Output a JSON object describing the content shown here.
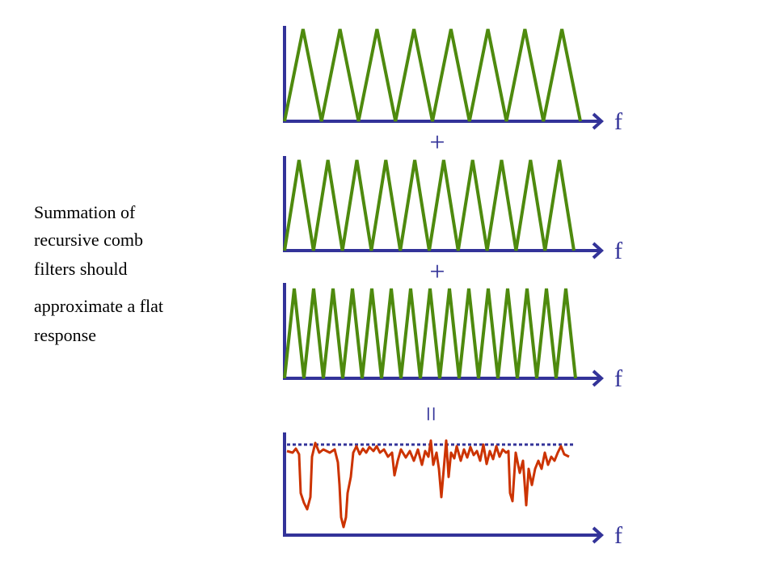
{
  "caption": {
    "lines": [
      "Summation of",
      "recursive comb",
      "filters should",
      "approximate a flat",
      "response"
    ]
  },
  "panels": [
    {
      "axis_label": "f"
    },
    {
      "axis_label": "f"
    },
    {
      "axis_label": "f"
    },
    {
      "axis_label": "f"
    }
  ],
  "operators": [
    "+",
    "+",
    "="
  ]
}
